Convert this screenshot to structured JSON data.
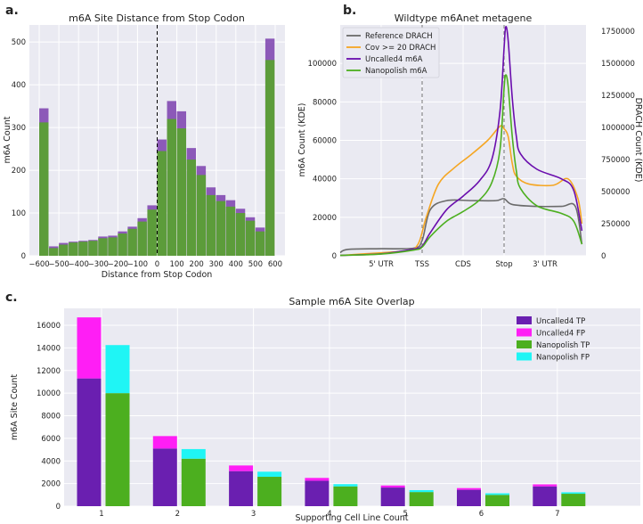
{
  "figure": {
    "panel_a": "a.",
    "panel_b": "b.",
    "panel_c": "c."
  },
  "chart_data": [
    {
      "id": "a",
      "type": "bar",
      "title": "m6A Site Distance from Stop Codon",
      "xlabel": "Distance from Stop Codon",
      "ylabel": "m6A Count",
      "xlim": [
        -650,
        650
      ],
      "ylim": [
        0,
        540
      ],
      "xticks": [
        -600,
        -500,
        -400,
        -300,
        -200,
        -100,
        0,
        100,
        200,
        300,
        400,
        500,
        600
      ],
      "yticks": [
        0,
        100,
        200,
        300,
        400,
        500
      ],
      "bin_width": 50,
      "bin_left": [
        -600,
        -550,
        -500,
        -450,
        -400,
        -350,
        -300,
        -250,
        -200,
        -150,
        -100,
        -50,
        0,
        50,
        100,
        150,
        200,
        250,
        300,
        350,
        400,
        450,
        500,
        550
      ],
      "series": [
        {
          "name": "Uncalled4",
          "color": "#7b3fae",
          "values": [
            345,
            22,
            30,
            33,
            35,
            37,
            45,
            47,
            57,
            68,
            88,
            118,
            272,
            362,
            338,
            252,
            210,
            160,
            142,
            130,
            110,
            90,
            66,
            508
          ]
        },
        {
          "name": "Nanopolish",
          "color": "#5aa033",
          "values": [
            312,
            18,
            26,
            31,
            33,
            35,
            41,
            43,
            52,
            63,
            80,
            108,
            245,
            320,
            298,
            225,
            189,
            142,
            128,
            115,
            100,
            82,
            57,
            458
          ]
        }
      ],
      "vline": 0
    },
    {
      "id": "b",
      "type": "line",
      "title": "Wildtype m6Anet metagene",
      "ylabel": "m6A Count (KDE)",
      "ylabel2": "DRACH Count (KDE)",
      "ylim": [
        0,
        120000
      ],
      "ylim2": [
        0,
        1800000
      ],
      "yticks": [
        0,
        20000,
        40000,
        60000,
        80000,
        100000
      ],
      "yticks2": [
        0,
        250000,
        500000,
        750000,
        1000000,
        1250000,
        1500000,
        1750000
      ],
      "xlim": [
        0,
        3
      ],
      "xtick_positions": [
        0.5,
        1.0,
        1.5,
        2.0,
        2.5
      ],
      "xtick_labels": [
        "5' UTR",
        "TSS",
        "CDS",
        "Stop",
        "3' UTR"
      ],
      "vlines": [
        1.0,
        2.0
      ],
      "series": [
        {
          "name": "Reference DRACH",
          "color": "#6b6b6b",
          "axis": "right",
          "x": [
            0,
            0.1,
            0.5,
            0.9,
            1.0,
            1.1,
            1.3,
            1.6,
            1.9,
            2.0,
            2.1,
            2.4,
            2.7,
            2.87,
            2.95
          ],
          "y": [
            25000,
            50000,
            55000,
            60000,
            120000,
            360000,
            430000,
            430000,
            430000,
            445000,
            400000,
            385000,
            385000,
            385000,
            90000
          ]
        },
        {
          "name": "Cov >= 20 DRACH",
          "color": "#f5a623",
          "axis": "right",
          "x": [
            0,
            0.3,
            0.8,
            0.95,
            1.05,
            1.2,
            1.4,
            1.6,
            1.8,
            1.95,
            2.0,
            2.05,
            2.1,
            2.15,
            2.3,
            2.6,
            2.78,
            2.9,
            2.95
          ],
          "y": [
            2000,
            15000,
            40000,
            90000,
            300000,
            560000,
            690000,
            790000,
            900000,
            1010000,
            990000,
            930000,
            720000,
            620000,
            560000,
            550000,
            600000,
            450000,
            250000
          ]
        },
        {
          "name": "Uncalled4 m6A",
          "color": "#6a0dad",
          "axis": "left",
          "x": [
            0,
            0.5,
            0.9,
            1.0,
            1.1,
            1.3,
            1.5,
            1.7,
            1.85,
            1.95,
            2.0,
            2.02,
            2.05,
            2.1,
            2.15,
            2.2,
            2.4,
            2.7,
            2.85,
            2.95
          ],
          "y": [
            200,
            1000,
            3500,
            5000,
            12000,
            24000,
            31000,
            39000,
            50000,
            75000,
            108000,
            119000,
            112000,
            82000,
            62000,
            53000,
            45000,
            40000,
            34000,
            13000
          ]
        },
        {
          "name": "Nanopolish m6A",
          "color": "#4caf1f",
          "axis": "left",
          "x": [
            0,
            0.5,
            0.9,
            1.0,
            1.1,
            1.3,
            1.5,
            1.7,
            1.85,
            1.95,
            2.0,
            2.02,
            2.05,
            2.1,
            2.15,
            2.2,
            2.4,
            2.7,
            2.85,
            2.95
          ],
          "y": [
            200,
            900,
            3000,
            4500,
            10000,
            18000,
            23000,
            29000,
            38000,
            55000,
            87000,
            94000,
            88000,
            62000,
            44000,
            35000,
            26000,
            22000,
            18000,
            6000
          ]
        }
      ]
    },
    {
      "id": "c",
      "type": "bar",
      "title": "Sample m6A Site Overlap",
      "xlabel": "Supporting Cell Line Count",
      "ylabel": "m6A Site Count",
      "categories": [
        "1",
        "2",
        "3",
        "4",
        "5",
        "6",
        "7"
      ],
      "ylim": [
        0,
        17500
      ],
      "yticks": [
        0,
        2000,
        4000,
        6000,
        8000,
        10000,
        12000,
        14000,
        16000
      ],
      "legend_position": "top-right",
      "series": [
        {
          "name": "Uncalled4 TP",
          "color": "#6a1fb0",
          "group": "Uncalled4",
          "values": [
            11300,
            5100,
            3100,
            2250,
            1650,
            1450,
            1750
          ]
        },
        {
          "name": "Uncalled4 FP",
          "color": "#ff1ef5",
          "group": "Uncalled4",
          "values": [
            5400,
            1100,
            500,
            250,
            180,
            150,
            180
          ]
        },
        {
          "name": "Nanopolish TP",
          "color": "#4caf1f",
          "group": "Nanopolish",
          "values": [
            10000,
            4200,
            2600,
            1750,
            1250,
            1000,
            1100
          ]
        },
        {
          "name": "Nanopolish FP",
          "color": "#1ff5f5",
          "group": "Nanopolish",
          "values": [
            4250,
            850,
            450,
            200,
            170,
            140,
            130
          ]
        }
      ]
    }
  ]
}
